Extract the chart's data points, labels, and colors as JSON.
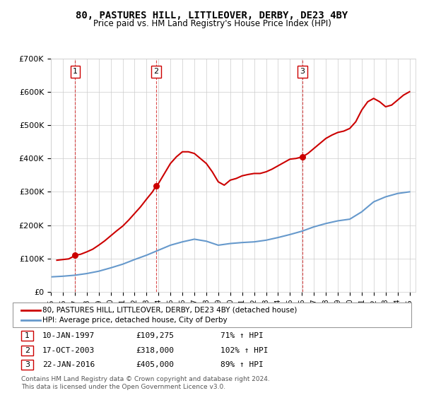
{
  "title": "80, PASTURES HILL, LITTLEOVER, DERBY, DE23 4BY",
  "subtitle": "Price paid vs. HM Land Registry's House Price Index (HPI)",
  "legend_line1": "80, PASTURES HILL, LITTLEOVER, DERBY, DE23 4BY (detached house)",
  "legend_line2": "HPI: Average price, detached house, City of Derby",
  "footer1": "Contains HM Land Registry data © Crown copyright and database right 2024.",
  "footer2": "This data is licensed under the Open Government Licence v3.0.",
  "sales": [
    {
      "num": 1,
      "date": "10-JAN-1997",
      "price": 109275,
      "year": 1997.03
    },
    {
      "num": 2,
      "date": "17-OCT-2003",
      "price": 318000,
      "year": 2003.8
    },
    {
      "num": 3,
      "date": "22-JAN-2016",
      "price": 405000,
      "year": 2016.05
    }
  ],
  "sale_annotations": [
    {
      "num": 1,
      "date": "10-JAN-1997",
      "price": "£109,275",
      "hpi": "71% ↑ HPI"
    },
    {
      "num": 2,
      "date": "17-OCT-2003",
      "price": "£318,000",
      "hpi": "102% ↑ HPI"
    },
    {
      "num": 3,
      "date": "22-JAN-2016",
      "price": "£405,000",
      "hpi": "89% ↑ HPI"
    }
  ],
  "red_color": "#cc0000",
  "blue_color": "#6699cc",
  "dashed_color": "#cc0000",
  "ylim": [
    0,
    700000
  ],
  "xlim_start": 1995.0,
  "xlim_end": 2025.5,
  "yticks": [
    0,
    100000,
    200000,
    300000,
    400000,
    500000,
    600000,
    700000
  ],
  "ytick_labels": [
    "£0",
    "£100K",
    "£200K",
    "£300K",
    "£400K",
    "£500K",
    "£600K",
    "£700K"
  ],
  "xticks": [
    1995,
    1996,
    1997,
    1998,
    1999,
    2000,
    2001,
    2002,
    2003,
    2004,
    2005,
    2006,
    2007,
    2008,
    2009,
    2010,
    2011,
    2012,
    2013,
    2014,
    2015,
    2016,
    2017,
    2018,
    2019,
    2020,
    2021,
    2022,
    2023,
    2024,
    2025
  ],
  "hpi_years": [
    1995,
    1996,
    1997,
    1998,
    1999,
    2000,
    2001,
    2002,
    2003,
    2004,
    2005,
    2006,
    2007,
    2008,
    2009,
    2010,
    2011,
    2012,
    2013,
    2014,
    2015,
    2016,
    2017,
    2018,
    2019,
    2020,
    2021,
    2022,
    2023,
    2024,
    2025
  ],
  "hpi_values": [
    45000,
    47000,
    50000,
    55000,
    62000,
    72000,
    83000,
    97000,
    110000,
    125000,
    140000,
    150000,
    158000,
    152000,
    140000,
    145000,
    148000,
    150000,
    155000,
    163000,
    172000,
    182000,
    195000,
    205000,
    213000,
    218000,
    240000,
    270000,
    285000,
    295000,
    300000
  ],
  "red_years": [
    1995.5,
    1996.0,
    1996.5,
    1997.03,
    1997.5,
    1998.0,
    1998.5,
    1999.0,
    1999.5,
    2000.0,
    2000.5,
    2001.0,
    2001.5,
    2002.0,
    2002.5,
    2003.0,
    2003.5,
    2003.8,
    2004.0,
    2004.5,
    2005.0,
    2005.5,
    2006.0,
    2006.5,
    2007.0,
    2007.5,
    2008.0,
    2008.5,
    2009.0,
    2009.5,
    2010.0,
    2010.5,
    2011.0,
    2011.5,
    2012.0,
    2012.5,
    2013.0,
    2013.5,
    2014.0,
    2014.5,
    2015.0,
    2015.5,
    2016.05,
    2016.5,
    2017.0,
    2017.5,
    2018.0,
    2018.5,
    2019.0,
    2019.5,
    2020.0,
    2020.5,
    2021.0,
    2021.5,
    2022.0,
    2022.5,
    2023.0,
    2023.5,
    2024.0,
    2024.5,
    2025.0
  ],
  "red_values": [
    95000,
    97000,
    99000,
    109275,
    113000,
    120000,
    128000,
    140000,
    153000,
    168000,
    183000,
    197000,
    215000,
    235000,
    255000,
    278000,
    300000,
    318000,
    325000,
    355000,
    385000,
    405000,
    420000,
    420000,
    415000,
    400000,
    385000,
    360000,
    330000,
    320000,
    335000,
    340000,
    348000,
    352000,
    355000,
    355000,
    360000,
    368000,
    378000,
    388000,
    398000,
    400000,
    405000,
    415000,
    430000,
    445000,
    460000,
    470000,
    478000,
    482000,
    490000,
    510000,
    545000,
    570000,
    580000,
    570000,
    555000,
    560000,
    575000,
    590000,
    600000
  ]
}
